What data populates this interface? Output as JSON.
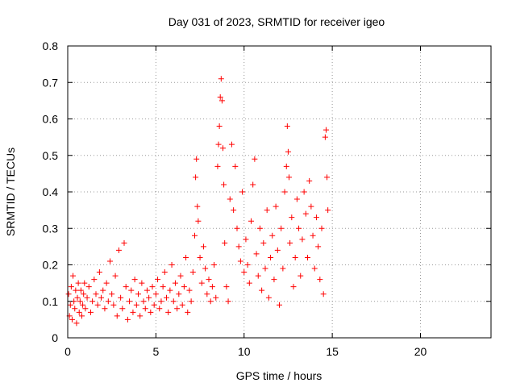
{
  "chart_data": {
    "type": "scatter",
    "title": "Day 031 of 2023, SRMTID for receiver igeo",
    "xlabel": "GPS time / hours",
    "ylabel": "SRMTID / TECUs",
    "xlim": [
      0,
      24
    ],
    "ylim": [
      0,
      0.8
    ],
    "xticks": [
      0,
      5,
      10,
      15,
      20
    ],
    "yticks": [
      0,
      0.1,
      0.2,
      0.3,
      0.4,
      0.5,
      0.6,
      0.7,
      0.8
    ],
    "xtick_labels": [
      "0",
      "5",
      "10",
      "15",
      "20"
    ],
    "ytick_labels": [
      "0",
      "0.1",
      "0.2",
      "0.3",
      "0.4",
      "0.5",
      "0.6",
      "0.7",
      "0.8"
    ],
    "grid": true,
    "marker": "+",
    "color": "#ff0000",
    "series": [
      {
        "name": "SRMTID",
        "points": [
          [
            0.05,
            0.12
          ],
          [
            0.1,
            0.06
          ],
          [
            0.15,
            0.09
          ],
          [
            0.2,
            0.14
          ],
          [
            0.25,
            0.05
          ],
          [
            0.3,
            0.17
          ],
          [
            0.35,
            0.1
          ],
          [
            0.4,
            0.08
          ],
          [
            0.45,
            0.13
          ],
          [
            0.5,
            0.04
          ],
          [
            0.55,
            0.11
          ],
          [
            0.6,
            0.15
          ],
          [
            0.65,
            0.07
          ],
          [
            0.7,
            0.1
          ],
          [
            0.75,
            0.13
          ],
          [
            0.8,
            0.06
          ],
          [
            0.85,
            0.09
          ],
          [
            0.9,
            0.12
          ],
          [
            0.95,
            0.15
          ],
          [
            1.0,
            0.08
          ],
          [
            1.1,
            0.11
          ],
          [
            1.2,
            0.14
          ],
          [
            1.3,
            0.07
          ],
          [
            1.4,
            0.1
          ],
          [
            1.5,
            0.16
          ],
          [
            1.6,
            0.12
          ],
          [
            1.7,
            0.09
          ],
          [
            1.8,
            0.18
          ],
          [
            1.9,
            0.11
          ],
          [
            2.0,
            0.13
          ],
          [
            2.1,
            0.08
          ],
          [
            2.2,
            0.15
          ],
          [
            2.3,
            0.1
          ],
          [
            2.4,
            0.21
          ],
          [
            2.5,
            0.12
          ],
          [
            2.6,
            0.09
          ],
          [
            2.7,
            0.17
          ],
          [
            2.8,
            0.06
          ],
          [
            2.9,
            0.24
          ],
          [
            3.0,
            0.11
          ],
          [
            3.1,
            0.08
          ],
          [
            3.2,
            0.26
          ],
          [
            3.3,
            0.14
          ],
          [
            3.4,
            0.05
          ],
          [
            3.5,
            0.1
          ],
          [
            3.6,
            0.13
          ],
          [
            3.7,
            0.07
          ],
          [
            3.8,
            0.16
          ],
          [
            3.9,
            0.09
          ],
          [
            4.0,
            0.12
          ],
          [
            4.1,
            0.06
          ],
          [
            4.2,
            0.15
          ],
          [
            4.3,
            0.1
          ],
          [
            4.4,
            0.08
          ],
          [
            4.5,
            0.13
          ],
          [
            4.6,
            0.11
          ],
          [
            4.7,
            0.07
          ],
          [
            4.8,
            0.14
          ],
          [
            4.9,
            0.09
          ],
          [
            5.0,
            0.12
          ],
          [
            5.1,
            0.16
          ],
          [
            5.2,
            0.08
          ],
          [
            5.3,
            0.1
          ],
          [
            5.4,
            0.14
          ],
          [
            5.5,
            0.18
          ],
          [
            5.6,
            0.11
          ],
          [
            5.7,
            0.07
          ],
          [
            5.8,
            0.13
          ],
          [
            5.9,
            0.2
          ],
          [
            6.0,
            0.1
          ],
          [
            6.1,
            0.15
          ],
          [
            6.2,
            0.08
          ],
          [
            6.3,
            0.12
          ],
          [
            6.4,
            0.17
          ],
          [
            6.5,
            0.09
          ],
          [
            6.6,
            0.14
          ],
          [
            6.7,
            0.22
          ],
          [
            6.8,
            0.07
          ],
          [
            6.9,
            0.13
          ],
          [
            7.0,
            0.1
          ],
          [
            7.1,
            0.18
          ],
          [
            7.2,
            0.28
          ],
          [
            7.25,
            0.44
          ],
          [
            7.3,
            0.49
          ],
          [
            7.35,
            0.36
          ],
          [
            7.4,
            0.32
          ],
          [
            7.5,
            0.22
          ],
          [
            7.6,
            0.15
          ],
          [
            7.7,
            0.25
          ],
          [
            7.8,
            0.19
          ],
          [
            7.9,
            0.12
          ],
          [
            8.0,
            0.16
          ],
          [
            8.1,
            0.1
          ],
          [
            8.2,
            0.14
          ],
          [
            8.3,
            0.2
          ],
          [
            8.4,
            0.11
          ],
          [
            8.5,
            0.47
          ],
          [
            8.55,
            0.53
          ],
          [
            8.6,
            0.58
          ],
          [
            8.65,
            0.66
          ],
          [
            8.7,
            0.71
          ],
          [
            8.75,
            0.65
          ],
          [
            8.8,
            0.52
          ],
          [
            8.85,
            0.42
          ],
          [
            8.9,
            0.26
          ],
          [
            9.0,
            0.14
          ],
          [
            9.1,
            0.1
          ],
          [
            9.2,
            0.38
          ],
          [
            9.3,
            0.53
          ],
          [
            9.4,
            0.35
          ],
          [
            9.5,
            0.47
          ],
          [
            9.6,
            0.3
          ],
          [
            9.7,
            0.25
          ],
          [
            9.8,
            0.21
          ],
          [
            9.9,
            0.4
          ],
          [
            10.0,
            0.18
          ],
          [
            10.1,
            0.27
          ],
          [
            10.2,
            0.2
          ],
          [
            10.3,
            0.15
          ],
          [
            10.4,
            0.32
          ],
          [
            10.5,
            0.42
          ],
          [
            10.6,
            0.49
          ],
          [
            10.7,
            0.23
          ],
          [
            10.8,
            0.17
          ],
          [
            10.9,
            0.3
          ],
          [
            11.0,
            0.13
          ],
          [
            11.1,
            0.26
          ],
          [
            11.2,
            0.19
          ],
          [
            11.3,
            0.35
          ],
          [
            11.4,
            0.11
          ],
          [
            11.5,
            0.22
          ],
          [
            11.6,
            0.28
          ],
          [
            11.7,
            0.16
          ],
          [
            11.8,
            0.36
          ],
          [
            11.9,
            0.24
          ],
          [
            12.0,
            0.09
          ],
          [
            12.1,
            0.3
          ],
          [
            12.2,
            0.19
          ],
          [
            12.3,
            0.4
          ],
          [
            12.4,
            0.47
          ],
          [
            12.45,
            0.58
          ],
          [
            12.5,
            0.51
          ],
          [
            12.55,
            0.44
          ],
          [
            12.6,
            0.26
          ],
          [
            12.7,
            0.33
          ],
          [
            12.8,
            0.14
          ],
          [
            12.9,
            0.22
          ],
          [
            13.0,
            0.38
          ],
          [
            13.1,
            0.3
          ],
          [
            13.2,
            0.17
          ],
          [
            13.3,
            0.27
          ],
          [
            13.4,
            0.4
          ],
          [
            13.5,
            0.34
          ],
          [
            13.6,
            0.22
          ],
          [
            13.7,
            0.43
          ],
          [
            13.8,
            0.36
          ],
          [
            13.9,
            0.28
          ],
          [
            14.0,
            0.19
          ],
          [
            14.1,
            0.33
          ],
          [
            14.2,
            0.25
          ],
          [
            14.3,
            0.16
          ],
          [
            14.4,
            0.3
          ],
          [
            14.5,
            0.12
          ],
          [
            14.6,
            0.55
          ],
          [
            14.65,
            0.57
          ],
          [
            14.7,
            0.44
          ],
          [
            14.75,
            0.35
          ]
        ]
      }
    ]
  }
}
